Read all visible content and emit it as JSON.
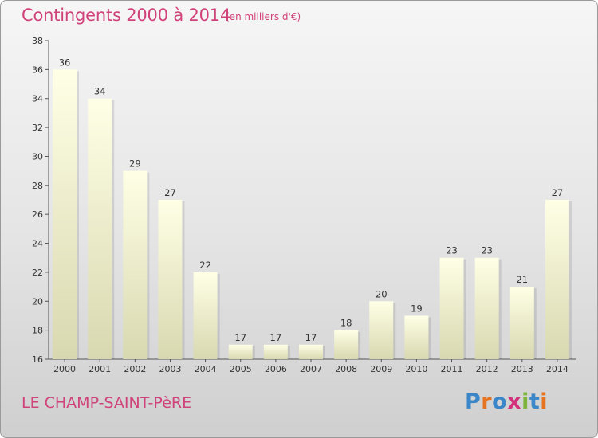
{
  "header": {
    "title": "Contingents 2000 à 2014",
    "subtitle": "(en milliers d'€)"
  },
  "footer": {
    "commune": "LE CHAMP-SAINT-PèRE",
    "logo_text": "Proxiti",
    "logo_colors": [
      "#3a86c8",
      "#e5731f",
      "#3a86c8",
      "#d4317c",
      "#7cb53a",
      "#3a86c8",
      "#e5731f"
    ]
  },
  "colors": {
    "bar_top": "#ffffe6",
    "bar_bottom": "#d8d8b0",
    "title": "#d0437a"
  },
  "chart_data": {
    "type": "bar",
    "title": "Contingents 2000 à 2014",
    "subtitle": "(en milliers d'€)",
    "categories": [
      "2000",
      "2001",
      "2002",
      "2003",
      "2004",
      "2005",
      "2006",
      "2007",
      "2008",
      "2009",
      "2010",
      "2011",
      "2012",
      "2013",
      "2014"
    ],
    "values": [
      36,
      34,
      29,
      27,
      22,
      17,
      17,
      17,
      18,
      20,
      19,
      23,
      23,
      21,
      27
    ],
    "ylim": [
      16,
      38
    ],
    "yticks": [
      16,
      18,
      20,
      22,
      24,
      26,
      28,
      30,
      32,
      34,
      36,
      38
    ],
    "grid": false,
    "legend": "none"
  }
}
